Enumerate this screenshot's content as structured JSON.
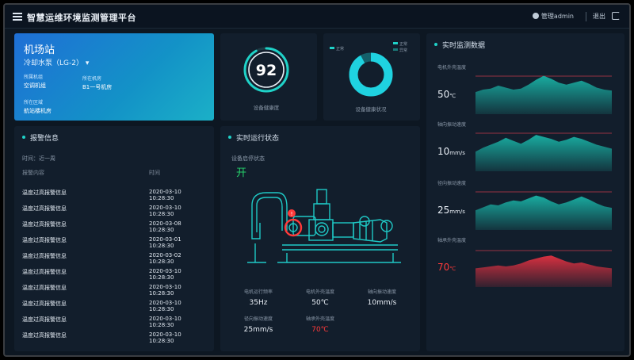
{
  "header": {
    "title": "智慧运维环境监测管理平台",
    "user": "管理admin",
    "exit_label": "退出"
  },
  "station": {
    "name": "机场站",
    "device": "冷却水泵（LG-2）",
    "fields": [
      {
        "label": "所属机组",
        "value": "空调机组"
      },
      {
        "label": "所在机房",
        "value": "B1一号机房"
      },
      {
        "label": "所在区域",
        "value": "航站楼机房"
      }
    ]
  },
  "score": {
    "value": "92",
    "label": "设备健康度"
  },
  "health": {
    "label": "设备健康状况",
    "legend": [
      "正常",
      "异常"
    ],
    "good_fraction": 0.92
  },
  "alarms": {
    "title": "报警信息",
    "filter": "时间：近一周",
    "columns": [
      "报警内容",
      "时间"
    ],
    "rows": [
      {
        "content": "温度过高报警信息",
        "time": "2020-03-10 10:28:30"
      },
      {
        "content": "温度过高报警信息",
        "time": "2020-03-10 10:28:30"
      },
      {
        "content": "温度过高报警信息",
        "time": "2020-03-08 10:28:30"
      },
      {
        "content": "温度过高报警信息",
        "time": "2020-03-01 10:28:30"
      },
      {
        "content": "温度过高报警信息",
        "time": "2020-03-02 10:28:30"
      },
      {
        "content": "温度过高报警信息",
        "time": "2020-03-10 10:28:30"
      },
      {
        "content": "温度过高报警信息",
        "time": "2020-03-10 10:28:30"
      },
      {
        "content": "温度过高报警信息",
        "time": "2020-03-10 10:28:30"
      },
      {
        "content": "温度过高报警信息",
        "time": "2020-03-10 10:28:30"
      },
      {
        "content": "温度过高报警信息",
        "time": "2020-03-10 10:28:30"
      }
    ]
  },
  "running": {
    "title": "实时运行状态",
    "fan_label": "设备启停状态",
    "fan_state": "开",
    "metrics": [
      {
        "label": "电机运行频率",
        "value": "35Hz"
      },
      {
        "label": "电机外壳温度",
        "value": "50℃"
      },
      {
        "label": "轴向振动速度",
        "value": "10mm/s"
      },
      {
        "label": "径向振动速度",
        "value": "25mm/s"
      },
      {
        "label": "轴承外壳温度",
        "value": "70℃"
      }
    ]
  },
  "live": {
    "title": "实时监测数据",
    "items": [
      {
        "label": "电机外壳温度",
        "value": "50",
        "unit": "℃",
        "color": "#19b3a6",
        "alarm": false
      },
      {
        "label": "轴向振动速度",
        "value": "10",
        "unit": "mm/s",
        "color": "#19b3a6",
        "alarm": false
      },
      {
        "label": "径向振动速度",
        "value": "25",
        "unit": "mm/s",
        "color": "#19b3a6",
        "alarm": false
      },
      {
        "label": "轴承外壳温度",
        "value": "70",
        "unit": "℃",
        "color": "#e23141",
        "alarm": true
      }
    ]
  },
  "colors": {
    "accent": "#1fd2c8",
    "alarm": "#ff3a3a",
    "ok": "#25d06a"
  }
}
